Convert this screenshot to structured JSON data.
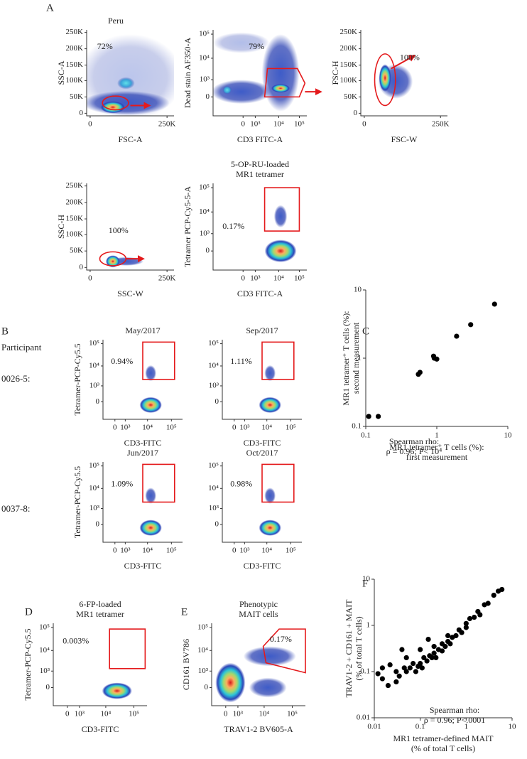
{
  "figure": {
    "A": {
      "label": "A",
      "plots": [
        {
          "title": [
            "Peru"
          ],
          "y_label": "SSC-A",
          "x_label": "FSC-A",
          "gate_label": "72%",
          "yticks": [
            "0",
            "50K",
            "100K",
            "150K",
            "200K",
            "250K"
          ],
          "xticks": [
            "0",
            "250K"
          ]
        },
        {
          "y_label": "Dead stain AF350-A",
          "x_label": "CD3 FITC-A",
          "gate_label": "79%",
          "yticks": [
            "0",
            "10³",
            "10⁴",
            "10⁵"
          ],
          "xticks": [
            "0",
            "10³",
            "10⁴",
            "10⁵"
          ]
        },
        {
          "y_label": "FSC-H",
          "x_label": "FSC-W",
          "gate_label": "100%",
          "yticks": [
            "0",
            "50K",
            "100K",
            "150K",
            "200K",
            "250K"
          ],
          "xticks": [
            "0",
            "250K"
          ]
        },
        {
          "y_label": "SSC-H",
          "x_label": "SSC-W",
          "gate_label": "100%",
          "yticks": [
            "0",
            "50K",
            "100K",
            "150K",
            "200K",
            "250K"
          ],
          "xticks": [
            "0",
            "250K"
          ]
        },
        {
          "title": [
            "5-OP-RU-loaded",
            "MR1 tetramer"
          ],
          "y_label": "Tetramer PCP-Cy5-5-A",
          "x_label": "CD3 FITC-A",
          "gate_label": "0.17%",
          "yticks": [
            "0",
            "10³",
            "10⁴",
            "10⁵"
          ],
          "xticks": [
            "0",
            "10³",
            "10⁴",
            "10⁵"
          ]
        }
      ]
    },
    "B": {
      "label": "B",
      "row_header": "Participant",
      "rows": [
        "0026-5:",
        "0037-8:"
      ],
      "plots": [
        {
          "title": [
            "May/2017"
          ],
          "y_label": "Tetramer-PCP-Cy5.5",
          "x_label": "CD3-FITC",
          "gate_label": "0.94%",
          "yticks": [
            "0",
            "10³",
            "10⁴",
            "10⁵"
          ],
          "xticks": [
            "0",
            "10³",
            "10⁴",
            "10⁵"
          ]
        },
        {
          "title": [
            "Sep/2017"
          ],
          "x_label": "CD3-FITC",
          "gate_label": "1.11%",
          "yticks": [
            "0",
            "10³",
            "10⁴",
            "10⁵"
          ],
          "xticks": [
            "0",
            "10³",
            "10⁴",
            "10⁵"
          ]
        },
        {
          "title": [
            "Jun/2017"
          ],
          "y_label": "Tetramer-PCP-Cy5.5",
          "x_label": "CD3-FITC",
          "gate_label": "1.09%",
          "yticks": [
            "0",
            "10³",
            "10⁴",
            "10⁵"
          ],
          "xticks": [
            "0",
            "10³",
            "10⁴",
            "10⁵"
          ]
        },
        {
          "title": [
            "Oct/2017"
          ],
          "x_label": "CD3-FITC",
          "gate_label": "0.98%",
          "yticks": [
            "0",
            "10³",
            "10⁴",
            "10⁵"
          ],
          "xticks": [
            "0",
            "10³",
            "10⁴",
            "10⁵"
          ]
        }
      ]
    },
    "C": {
      "label": "C"
    },
    "D": {
      "label": "D",
      "plots": [
        {
          "title": [
            "6-FP-loaded",
            "MR1 tetramer"
          ],
          "y_label": "Tetramer-PCP-Cy5.5",
          "x_label": "CD3-FITC",
          "gate_label": "0.003%",
          "yticks": [
            "0",
            "10³",
            "10⁴",
            "10⁵"
          ],
          "xticks": [
            "0",
            "10³",
            "10⁴",
            "10⁵"
          ]
        }
      ]
    },
    "E": {
      "label": "E",
      "plots": [
        {
          "title": [
            "Phenotypic",
            "MAIT cells"
          ],
          "y_label": "CD161 BV786",
          "x_label": "TRAV1-2 BV605-A",
          "gate_label": "0.17%",
          "yticks": [
            "0",
            "10³",
            "10⁴",
            "10⁵"
          ],
          "xticks": [
            "0",
            "10³",
            "10⁴",
            "10⁵"
          ]
        }
      ]
    },
    "F": {
      "label": "F"
    }
  },
  "chart_data": [
    {
      "type": "scatter",
      "log_scale": true,
      "color": "#000000",
      "x_label": [
        "MR1 tetramer⁺ T cells (%):",
        "first measurement"
      ],
      "y_label": [
        "MR1 tetramer⁺ T cells (%):",
        "second measurement"
      ],
      "annotation": [
        "Spearman rho:",
        "ρ = 0.96; P< 10⁴"
      ],
      "xlim": [
        0.1,
        10
      ],
      "ylim": [
        0.1,
        10
      ],
      "xticks": [
        0.1,
        1,
        10
      ],
      "yticks": [
        0.1,
        1,
        10
      ],
      "x": [
        0.11,
        0.15,
        0.55,
        0.58,
        0.9,
        0.92,
        1.0,
        1.9,
        3.0,
        6.5
      ],
      "values": [
        0.14,
        0.14,
        0.58,
        0.62,
        1.07,
        1.0,
        0.97,
        2.1,
        3.1,
        6.2
      ]
    },
    {
      "type": "scatter",
      "log_scale": true,
      "color": "#000000",
      "x_label": [
        "MR1 tetramer-defined MAIT",
        "(% of total T cells)"
      ],
      "y_label": [
        "TRAV1-2 + CD161 + MAIT",
        "(% of total T cells)"
      ],
      "annotation": [
        "Spearman rho:",
        "ρ = 0.96; P<.0001"
      ],
      "xlim": [
        0.01,
        10
      ],
      "ylim": [
        0.01,
        10
      ],
      "xticks": [
        0.01,
        0.1,
        1,
        10
      ],
      "yticks": [
        0.01,
        0.1,
        1,
        10
      ],
      "x": [
        0.012,
        0.015,
        0.015,
        0.02,
        0.022,
        0.03,
        0.03,
        0.035,
        0.04,
        0.045,
        0.05,
        0.05,
        0.06,
        0.07,
        0.08,
        0.09,
        0.1,
        0.1,
        0.11,
        0.12,
        0.14,
        0.15,
        0.16,
        0.18,
        0.2,
        0.2,
        0.22,
        0.25,
        0.3,
        0.3,
        0.35,
        0.4,
        0.4,
        0.45,
        0.5,
        0.6,
        0.7,
        0.8,
        1,
        1,
        1.2,
        1.5,
        1.8,
        2,
        2.5,
        3,
        4,
        5,
        6
      ],
      "values": [
        0.09,
        0.12,
        0.07,
        0.05,
        0.14,
        0.06,
        0.1,
        0.08,
        0.3,
        0.12,
        0.1,
        0.2,
        0.12,
        0.15,
        0.1,
        0.13,
        0.15,
        0.3,
        0.12,
        0.2,
        0.17,
        0.5,
        0.22,
        0.2,
        0.25,
        0.35,
        0.2,
        0.3,
        0.28,
        0.4,
        0.35,
        0.45,
        0.6,
        0.4,
        0.55,
        0.6,
        0.8,
        0.7,
        1.1,
        0.9,
        1.4,
        1.5,
        2,
        1.7,
        2.8,
        3,
        4.5,
        5.5,
        6
      ]
    }
  ]
}
